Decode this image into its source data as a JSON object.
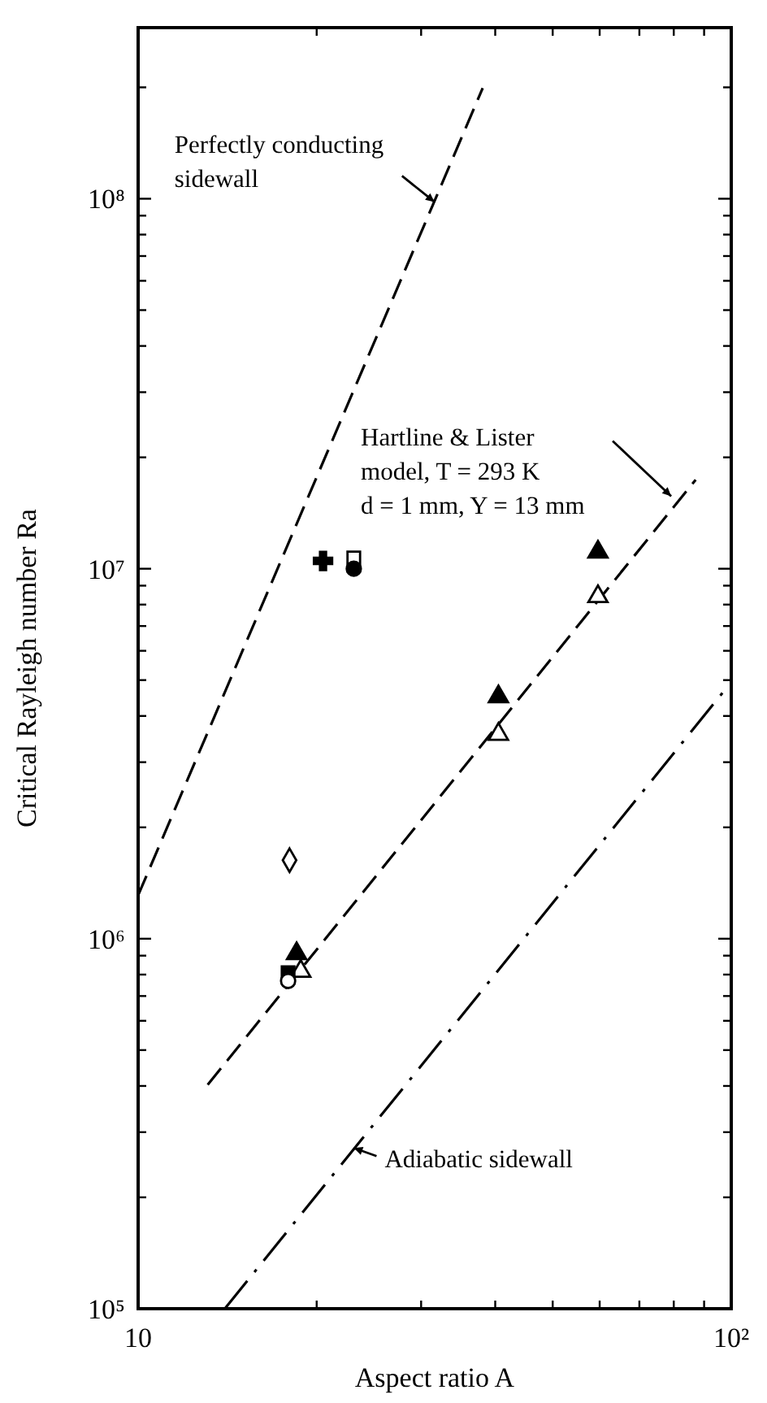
{
  "chart_data": {
    "type": "scatter",
    "xlabel": "Aspect ratio A",
    "ylabel": "Critical Rayleigh number Ra",
    "log": "xy",
    "grid": false,
    "xlim": [
      10,
      100
    ],
    "xticks": [
      {
        "value": 10,
        "label": "10"
      },
      {
        "value": 20,
        "label": null
      },
      {
        "value": 30,
        "label": null
      },
      {
        "value": 40,
        "label": null
      },
      {
        "value": 50,
        "label": null
      },
      {
        "value": 60,
        "label": null
      },
      {
        "value": 70,
        "label": null
      },
      {
        "value": 80,
        "label": null
      },
      {
        "value": 90,
        "label": null
      },
      {
        "value": 100,
        "label": "10²"
      }
    ],
    "ylim": [
      100000,
      290000000
    ],
    "yticks": [
      {
        "value": 100000,
        "label": "10⁵"
      },
      {
        "value": 200000,
        "label": null
      },
      {
        "value": 300000,
        "label": null
      },
      {
        "value": 400000,
        "label": null
      },
      {
        "value": 500000,
        "label": null
      },
      {
        "value": 600000,
        "label": null
      },
      {
        "value": 700000,
        "label": null
      },
      {
        "value": 800000,
        "label": null
      },
      {
        "value": 900000,
        "label": null
      },
      {
        "value": 1000000,
        "label": "10⁶"
      },
      {
        "value": 2000000,
        "label": null
      },
      {
        "value": 3000000,
        "label": null
      },
      {
        "value": 4000000,
        "label": null
      },
      {
        "value": 5000000,
        "label": null
      },
      {
        "value": 6000000,
        "label": null
      },
      {
        "value": 7000000,
        "label": null
      },
      {
        "value": 8000000,
        "label": null
      },
      {
        "value": 9000000,
        "label": null
      },
      {
        "value": 10000000,
        "label": "10⁷"
      },
      {
        "value": 20000000,
        "label": null
      },
      {
        "value": 30000000,
        "label": null
      },
      {
        "value": 40000000,
        "label": null
      },
      {
        "value": 50000000,
        "label": null
      },
      {
        "value": 60000000,
        "label": null
      },
      {
        "value": 70000000,
        "label": null
      },
      {
        "value": 80000000,
        "label": null
      },
      {
        "value": 90000000,
        "label": null
      },
      {
        "value": 100000000,
        "label": "10⁸"
      },
      {
        "value": 200000000,
        "label": null
      }
    ],
    "series": [
      {
        "type": "line",
        "line_style": "dashed",
        "color": "#000000",
        "x": [
          10,
          38.1
        ],
        "values": [
          1310000,
          199000000
        ]
      },
      {
        "type": "line",
        "line_style": "dashed",
        "color": "#000000",
        "x": [
          13.1,
          87.1
        ],
        "values": [
          403000,
          17400000
        ]
      },
      {
        "type": "line",
        "line_style": "dotted",
        "color": "#000000",
        "x": [
          14,
          96.9
        ],
        "values": [
          100000,
          4640000
        ]
      },
      {
        "marker": "cross",
        "color": "#000000",
        "x": [
          20.5
        ],
        "values": [
          10500000
        ]
      },
      {
        "marker": "square",
        "color": "#ffffff",
        "x": [
          23.1
        ],
        "values": [
          10700000
        ]
      },
      {
        "marker": "circle",
        "color": "#000000",
        "x": [
          23.1
        ],
        "values": [
          10000000
        ]
      },
      {
        "marker": "triangle",
        "color": "#000000",
        "x": [
          40.5,
          59.6,
          18.5
        ],
        "values": [
          4510000,
          11100000,
          912000
        ]
      },
      {
        "marker": "triangle",
        "color": "#ffffff",
        "x": [
          40.5,
          59.6,
          18.8
        ],
        "values": [
          3570000,
          8410000,
          817000
        ]
      },
      {
        "marker": "diamond",
        "color": "#ffffff",
        "x": [
          18
        ],
        "values": [
          1630000
        ]
      },
      {
        "marker": "square",
        "color": "#000000",
        "x": [
          17.9
        ],
        "values": [
          809000
        ]
      },
      {
        "marker": "circle",
        "color": "#ffffff",
        "x": [
          17.9
        ],
        "values": [
          769000
        ]
      }
    ],
    "annotations": [
      {
        "text": "Perfectly conducting\nsidewall",
        "x": 31.6,
        "y": 98000000
      },
      {
        "text": "Hartline & Lister\nmodel, T = 293 K\nd = 1 mm, Y = 13 mm",
        "x": 79.2,
        "y": 15700000
      },
      {
        "text": "Adiabatic sidewall",
        "x": 23.1,
        "y": 272000
      }
    ]
  }
}
